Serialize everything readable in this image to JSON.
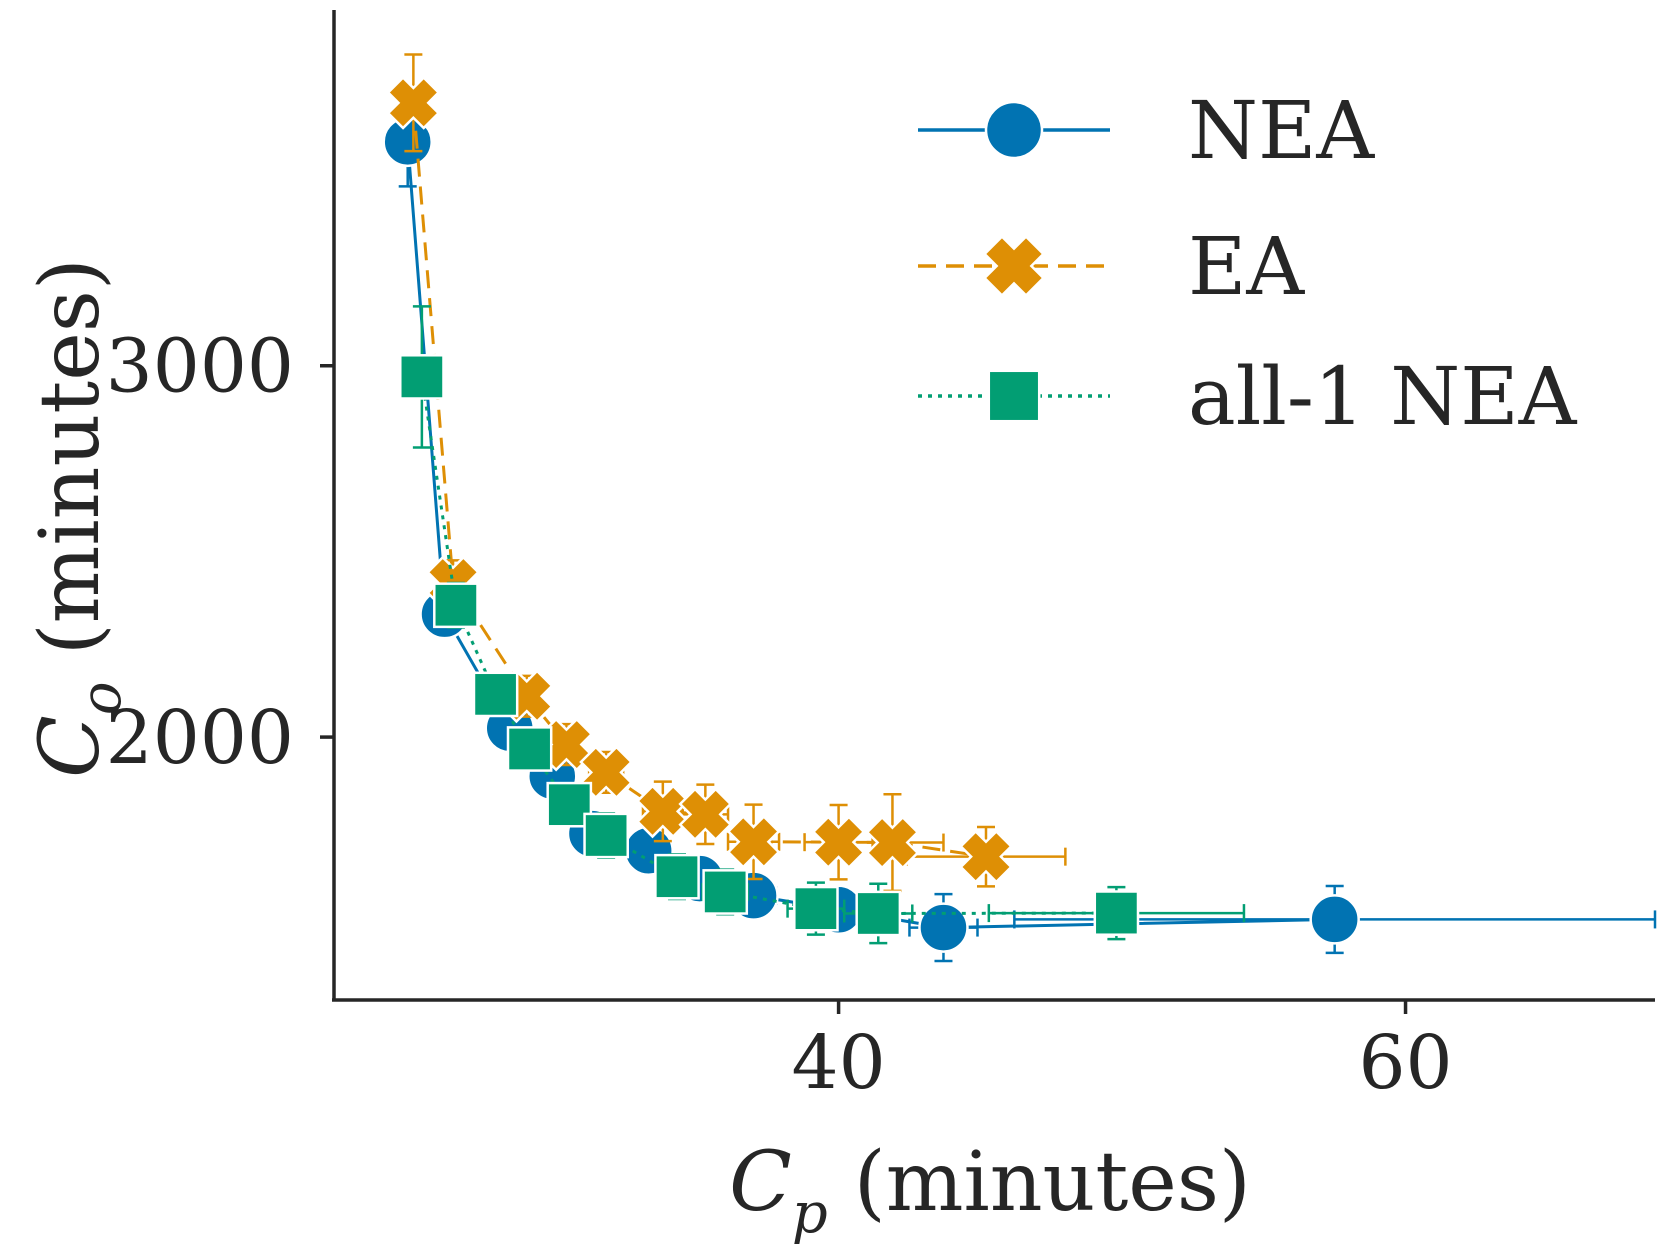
{
  "chart_data": {
    "type": "line",
    "title": "",
    "xlabel": {
      "main": "C",
      "sub": "p",
      "rest": " (minutes)"
    },
    "ylabel": {
      "main": "C",
      "sub": "o",
      "rest": " (minutes)"
    },
    "xlim": [
      22.2,
      68.8
    ],
    "ylim": [
      1292,
      3958
    ],
    "xticks": [
      {
        "value": 40,
        "label": "40"
      },
      {
        "value": 60,
        "label": "60"
      }
    ],
    "yticks": [
      {
        "value": 2000,
        "label": "2000"
      },
      {
        "value": 3000,
        "label": "3000"
      }
    ],
    "grid": false,
    "legend_position": "top-right",
    "series": [
      {
        "name": "NEA",
        "color": "#0173b2",
        "marker": "circle",
        "linestyle": "solid",
        "points": [
          {
            "x": 24.8,
            "y": 3603,
            "xerr": 0.3,
            "yerr": 120
          },
          {
            "x": 26.1,
            "y": 2331,
            "xerr": 0.4,
            "yerr": 40
          },
          {
            "x": 28.4,
            "y": 2024,
            "xerr": 0.4,
            "yerr": 40
          },
          {
            "x": 29.9,
            "y": 1895,
            "xerr": 0.4,
            "yerr": 40
          },
          {
            "x": 31.3,
            "y": 1740,
            "xerr": 0.5,
            "yerr": 40
          },
          {
            "x": 33.3,
            "y": 1694,
            "xerr": 0.6,
            "yerr": 45
          },
          {
            "x": 35.1,
            "y": 1619,
            "xerr": 0.6,
            "yerr": 45
          },
          {
            "x": 37.0,
            "y": 1573,
            "xerr": 0.8,
            "yerr": 50
          },
          {
            "x": 40.0,
            "y": 1535,
            "xerr": 1.0,
            "yerr": 60
          },
          {
            "x": 43.7,
            "y": 1487,
            "xerr": 1.2,
            "yerr": 90
          },
          {
            "x": 57.5,
            "y": 1509,
            "xerr": 11.3,
            "yerr": 90
          }
        ]
      },
      {
        "name": "EA",
        "color": "#de8f05",
        "marker": "x",
        "linestyle": "dashed",
        "points": [
          {
            "x": 25.0,
            "y": 3708,
            "xerr": 0.3,
            "yerr": 130
          },
          {
            "x": 26.4,
            "y": 2416,
            "xerr": 0.4,
            "yerr": 60
          },
          {
            "x": 29.0,
            "y": 2110,
            "xerr": 0.5,
            "yerr": 55
          },
          {
            "x": 30.4,
            "y": 1980,
            "xerr": 0.5,
            "yerr": 55
          },
          {
            "x": 31.8,
            "y": 1905,
            "xerr": 0.6,
            "yerr": 55
          },
          {
            "x": 33.8,
            "y": 1800,
            "xerr": 0.7,
            "yerr": 80
          },
          {
            "x": 35.3,
            "y": 1792,
            "xerr": 0.8,
            "yerr": 80
          },
          {
            "x": 37.0,
            "y": 1718,
            "xerr": 0.9,
            "yerr": 100
          },
          {
            "x": 40.0,
            "y": 1717,
            "xerr": 1.2,
            "yerr": 100
          },
          {
            "x": 41.9,
            "y": 1716,
            "xerr": 1.8,
            "yerr": 130
          },
          {
            "x": 45.2,
            "y": 1678,
            "xerr": 2.8,
            "yerr": 80
          }
        ]
      },
      {
        "name": "all-1 NEA",
        "color": "#029e73",
        "marker": "square",
        "linestyle": "dotted",
        "points": [
          {
            "x": 25.3,
            "y": 2970,
            "xerr": 0.3,
            "yerr": 190
          },
          {
            "x": 26.5,
            "y": 2355,
            "xerr": 0.4,
            "yerr": 60
          },
          {
            "x": 27.9,
            "y": 2115,
            "xerr": 0.4,
            "yerr": 40
          },
          {
            "x": 29.1,
            "y": 1968,
            "xerr": 0.5,
            "yerr": 40
          },
          {
            "x": 30.5,
            "y": 1818,
            "xerr": 0.5,
            "yerr": 40
          },
          {
            "x": 31.8,
            "y": 1735,
            "xerr": 0.6,
            "yerr": 60
          },
          {
            "x": 34.3,
            "y": 1624,
            "xerr": 0.7,
            "yerr": 60
          },
          {
            "x": 36.0,
            "y": 1583,
            "xerr": 0.8,
            "yerr": 60
          },
          {
            "x": 39.2,
            "y": 1538,
            "xerr": 1.0,
            "yerr": 70
          },
          {
            "x": 41.4,
            "y": 1525,
            "xerr": 1.2,
            "yerr": 80
          },
          {
            "x": 49.8,
            "y": 1526,
            "xerr": 4.5,
            "yerr": 70
          }
        ]
      }
    ]
  }
}
